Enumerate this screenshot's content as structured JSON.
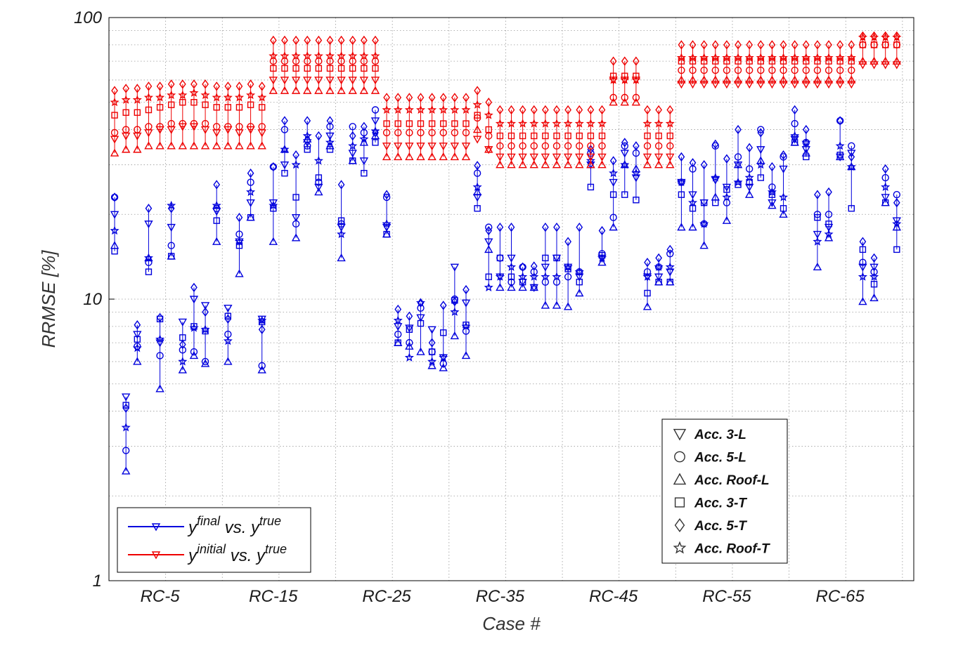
{
  "chart_data": {
    "type": "scatter",
    "xlabel": "Case #",
    "ylabel": "RRMSE [%]",
    "y_scale": "log",
    "ylim": [
      1,
      100
    ],
    "xlim": [
      0.5,
      71.5
    ],
    "grid": true,
    "x_tick_labels": [
      "RC-5",
      "RC-15",
      "RC-25",
      "RC-35",
      "RC-45",
      "RC-55",
      "RC-65"
    ],
    "x_tick_positions": [
      5,
      15,
      25,
      35,
      45,
      55,
      65
    ],
    "y_tick_labels": [
      "1",
      "10",
      "100"
    ],
    "marker_legend": [
      "Acc. 3-L",
      "Acc. 5-L",
      "Acc. Roof-L",
      "Acc. 3-T",
      "Acc. 5-T",
      "Acc. Roof-T"
    ],
    "marker_shapes": [
      "triangle-down",
      "circle",
      "triangle-up",
      "square",
      "diamond",
      "star"
    ],
    "series_legend": [
      {
        "key": "final",
        "color": "#0000dd"
      },
      {
        "key": "initial",
        "color": "#ee0000"
      }
    ],
    "legend_final": {
      "y": "y",
      "sup1": "final",
      "mid": " vs. y",
      "sup2": "true"
    },
    "legend_initial": {
      "y": "y",
      "sup1": "initial",
      "mid": " vs. y",
      "sup2": "true"
    },
    "series": [
      {
        "name": "final",
        "color": "#0000dd",
        "values": [
          [
            20,
            23,
            15.5,
            14.8,
            23,
            17.5
          ],
          [
            4.5,
            2.9,
            2.45,
            4.2,
            4.1,
            3.5
          ],
          [
            7.5,
            6.8,
            6,
            7.2,
            8.1,
            6.7
          ],
          [
            18.5,
            13.5,
            14,
            12.5,
            21,
            14
          ],
          [
            7,
            6.3,
            4.8,
            8.5,
            8.6,
            7.2
          ],
          [
            18,
            15.5,
            14.2,
            14.2,
            21,
            21.5
          ],
          [
            8.3,
            6.6,
            5.6,
            7.3,
            6.9,
            6
          ],
          [
            10,
            6.5,
            6.3,
            8,
            11,
            7.9
          ],
          [
            9.5,
            6,
            5.9,
            7.7,
            9,
            7.8
          ],
          [
            20.5,
            21,
            16,
            19,
            25.5,
            21.5
          ],
          [
            9.3,
            7.5,
            6,
            8.7,
            8.5,
            7.1
          ],
          [
            16,
            17,
            12.3,
            15.5,
            19.5,
            16
          ],
          [
            22,
            26,
            19.5,
            19.5,
            28,
            24
          ],
          [
            8.5,
            5.8,
            5.6,
            8.3,
            7.8,
            8.4
          ],
          [
            22,
            29.5,
            16,
            21,
            29.5,
            21.5
          ],
          [
            30,
            40,
            34,
            28,
            43,
            34
          ],
          [
            19.5,
            18.5,
            16.5,
            23,
            32.5,
            30
          ],
          [
            36,
            35,
            37,
            34,
            43,
            38
          ],
          [
            25,
            26,
            24,
            27,
            38,
            31
          ],
          [
            38,
            41,
            35,
            34,
            43,
            36
          ],
          [
            18,
            18.5,
            14,
            19,
            25.5,
            17
          ],
          [
            33,
            41,
            31,
            31,
            38,
            35
          ],
          [
            31,
            39,
            36,
            28,
            41,
            37
          ],
          [
            43,
            47,
            38,
            36,
            39,
            39.5
          ],
          [
            18,
            23,
            17,
            17,
            23.5,
            18.5
          ],
          [
            8,
            7.5,
            7,
            7,
            9.2,
            8.4
          ],
          [
            7.9,
            7,
            6.8,
            7.8,
            8.7,
            6.2
          ],
          [
            8.6,
            9.3,
            6.5,
            8.2,
            9.7,
            9.7
          ],
          [
            7.8,
            6.5,
            5.8,
            6.5,
            7,
            6
          ],
          [
            6.2,
            5.9,
            5.7,
            7.6,
            9.5,
            6.2
          ],
          [
            13,
            10,
            7.4,
            9.9,
            9.8,
            9
          ],
          [
            9.7,
            7.7,
            6.3,
            8.1,
            10.8,
            8
          ],
          [
            23,
            28,
            24,
            21,
            29.8,
            25
          ],
          [
            16,
            18,
            15,
            12,
            17.5,
            11
          ],
          [
            12,
            14,
            11,
            14,
            18,
            12
          ],
          [
            14,
            11.5,
            11,
            12,
            18,
            13
          ],
          [
            11.5,
            13,
            11,
            11.5,
            13,
            12
          ],
          [
            11,
            12.5,
            11,
            11,
            13.1,
            12
          ],
          [
            13,
            11.5,
            9.5,
            14,
            18,
            12
          ],
          [
            14,
            11.5,
            9.5,
            14,
            18,
            12
          ],
          [
            13,
            12,
            9.4,
            12.8,
            16,
            13
          ],
          [
            12,
            12.5,
            10.5,
            11.5,
            18,
            12.5
          ],
          [
            30,
            33,
            30,
            25,
            34,
            31
          ],
          [
            14,
            14.5,
            13.5,
            14.3,
            17.5,
            14
          ],
          [
            26,
            19.5,
            18,
            23.5,
            31,
            28
          ],
          [
            33,
            35,
            30,
            23.5,
            36,
            30
          ],
          [
            27,
            33,
            29,
            22.5,
            35,
            28
          ],
          [
            12,
            12.5,
            9.4,
            10.5,
            13.5,
            12
          ],
          [
            12,
            13,
            11.5,
            11.5,
            14,
            13
          ],
          [
            12.5,
            14.5,
            11.5,
            11.5,
            15,
            13
          ],
          [
            26,
            26,
            18,
            23.5,
            32,
            26
          ],
          [
            23.5,
            29,
            18,
            21,
            30.5,
            22
          ],
          [
            22,
            18.5,
            15.5,
            22,
            30,
            18.5
          ],
          [
            26.5,
            35,
            23,
            22,
            35.5,
            27
          ],
          [
            25,
            22,
            19,
            24.5,
            31.5,
            23
          ],
          [
            30,
            32,
            30,
            25.5,
            40,
            26
          ],
          [
            25,
            29,
            23.5,
            26,
            34.5,
            27
          ],
          [
            34,
            40,
            31,
            27,
            39,
            30
          ],
          [
            22,
            25,
            21.5,
            23.5,
            29.5,
            24
          ],
          [
            29,
            32,
            20,
            21,
            32.5,
            23
          ],
          [
            37,
            42,
            36,
            36,
            47,
            38
          ],
          [
            34,
            36,
            33,
            32,
            40,
            36
          ],
          [
            17,
            20,
            13,
            19.5,
            23.5,
            16
          ],
          [
            18,
            20,
            16.5,
            18.5,
            24,
            17
          ],
          [
            32,
            43,
            32,
            32.5,
            43,
            35
          ],
          [
            33,
            35,
            29.5,
            21,
            32,
            29.5
          ],
          [
            13,
            13.5,
            9.8,
            15,
            16,
            12
          ],
          [
            13,
            12.5,
            10.1,
            11.3,
            14,
            12
          ],
          [
            23,
            27,
            22,
            22,
            29,
            25
          ],
          [
            19,
            23.5,
            18,
            15,
            22,
            18.5
          ]
        ]
      },
      {
        "name": "initial",
        "color": "#ee0000",
        "values": [
          [
            37,
            39,
            33,
            45,
            55,
            50
          ],
          [
            38,
            40,
            34,
            46,
            56,
            51
          ],
          [
            38,
            40,
            34,
            46,
            56,
            51
          ],
          [
            39,
            41,
            35,
            47,
            57,
            52
          ],
          [
            40,
            41,
            35,
            48,
            57,
            52
          ],
          [
            40,
            42,
            35,
            49,
            58,
            53
          ],
          [
            41,
            42,
            35,
            50,
            58,
            53
          ],
          [
            41,
            42,
            35,
            50,
            58,
            54
          ],
          [
            40,
            42,
            35,
            49,
            58,
            53
          ],
          [
            39,
            41,
            35,
            48,
            57,
            52
          ],
          [
            40,
            41,
            35,
            48,
            57,
            52
          ],
          [
            39,
            41,
            35,
            48,
            57,
            52
          ],
          [
            40,
            41,
            35,
            49,
            58,
            53
          ],
          [
            39,
            41,
            35,
            48,
            57,
            52
          ],
          [
            60,
            70,
            55,
            66,
            83,
            73
          ],
          [
            60,
            70,
            55,
            66,
            83,
            73
          ],
          [
            60,
            70,
            55,
            66,
            83,
            73
          ],
          [
            60,
            70,
            55,
            66,
            83,
            73
          ],
          [
            60,
            70,
            55,
            66,
            83,
            73
          ],
          [
            60,
            70,
            55,
            66,
            83,
            73
          ],
          [
            60,
            70,
            55,
            66,
            83,
            73
          ],
          [
            60,
            70,
            55,
            66,
            83,
            73
          ],
          [
            60,
            70,
            55,
            66,
            83,
            73
          ],
          [
            60,
            70,
            55,
            66,
            83,
            73
          ],
          [
            35,
            39,
            32,
            42,
            52,
            47
          ],
          [
            35,
            39,
            32,
            42,
            52,
            47
          ],
          [
            35,
            39,
            32,
            42,
            52,
            47
          ],
          [
            35,
            39,
            32,
            42,
            52,
            47
          ],
          [
            35,
            39,
            32,
            42,
            52,
            47
          ],
          [
            35,
            39,
            32,
            42,
            52,
            47
          ],
          [
            35,
            39,
            32,
            42,
            52,
            47
          ],
          [
            35,
            39,
            32,
            42,
            52,
            47
          ],
          [
            37,
            44,
            40,
            45,
            55,
            49
          ],
          [
            34,
            38,
            34,
            40,
            50,
            45
          ],
          [
            32,
            35,
            30,
            38,
            47,
            42
          ],
          [
            32,
            35,
            30,
            38,
            47,
            42
          ],
          [
            32,
            35,
            30,
            38,
            47,
            42
          ],
          [
            32,
            35,
            30,
            38,
            47,
            42
          ],
          [
            32,
            35,
            30,
            38,
            47,
            42
          ],
          [
            32,
            35,
            30,
            38,
            47,
            42
          ],
          [
            32,
            35,
            30,
            38,
            47,
            42
          ],
          [
            32,
            35,
            30,
            38,
            47,
            42
          ],
          [
            32,
            35,
            30,
            38,
            47,
            42
          ],
          [
            32,
            35,
            30,
            38,
            47,
            42
          ],
          [
            60,
            52,
            50,
            62,
            70,
            60
          ],
          [
            60,
            52,
            50,
            62,
            70,
            60
          ],
          [
            60,
            52,
            50,
            62,
            70,
            60
          ],
          [
            32,
            35,
            30,
            38,
            47,
            42
          ],
          [
            32,
            35,
            30,
            38,
            47,
            42
          ],
          [
            32,
            35,
            30,
            38,
            47,
            42
          ],
          [
            58,
            65,
            60,
            70,
            80,
            72
          ],
          [
            58,
            65,
            60,
            70,
            80,
            72
          ],
          [
            58,
            65,
            60,
            70,
            80,
            72
          ],
          [
            58,
            65,
            60,
            70,
            80,
            72
          ],
          [
            58,
            65,
            60,
            70,
            80,
            72
          ],
          [
            58,
            65,
            60,
            70,
            80,
            72
          ],
          [
            58,
            65,
            60,
            70,
            80,
            72
          ],
          [
            58,
            65,
            60,
            70,
            80,
            72
          ],
          [
            58,
            65,
            60,
            70,
            80,
            72
          ],
          [
            58,
            65,
            60,
            70,
            80,
            72
          ],
          [
            58,
            65,
            60,
            70,
            80,
            72
          ],
          [
            58,
            65,
            60,
            70,
            80,
            72
          ],
          [
            58,
            65,
            60,
            70,
            80,
            72
          ],
          [
            58,
            65,
            60,
            70,
            80,
            72
          ],
          [
            58,
            65,
            60,
            70,
            80,
            72
          ],
          [
            58,
            65,
            60,
            70,
            80,
            72
          ],
          [
            68,
            80,
            70,
            80,
            86,
            85
          ],
          [
            68,
            80,
            70,
            80,
            86,
            85
          ],
          [
            68,
            80,
            70,
            80,
            86,
            85
          ],
          [
            68,
            80,
            70,
            80,
            86,
            85
          ]
        ]
      }
    ]
  }
}
